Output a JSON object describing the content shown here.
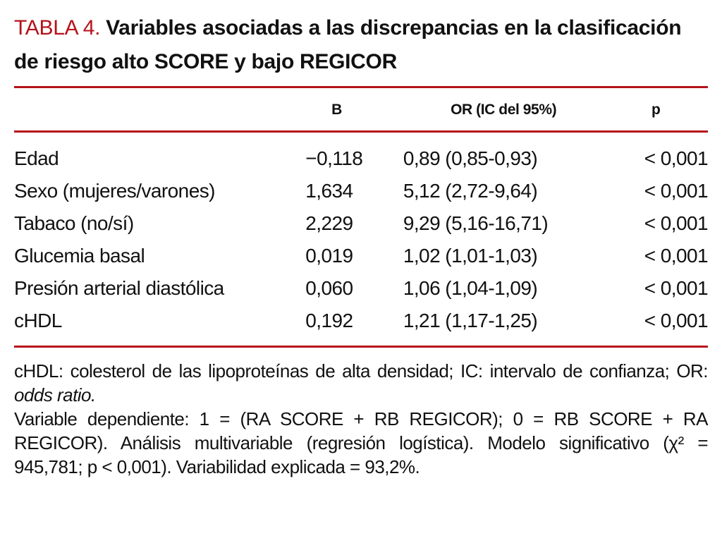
{
  "colors": {
    "accent": "#b5121b"
  },
  "title": {
    "label": "TABLA 4.",
    "text": "Variables asociadas a las discrepancias en la clasificación de riesgo alto SCORE y bajo REGICOR"
  },
  "table": {
    "headers": {
      "variable": "",
      "b": "B",
      "or": "OR (IC del 95%)",
      "p": "p"
    },
    "rows": [
      {
        "variable": "Edad",
        "b": "−0,118",
        "or": "0,89 (0,85-0,93)",
        "p": "< 0,001"
      },
      {
        "variable": "Sexo (mujeres/varones)",
        "b": "1,634",
        "or": "5,12 (2,72-9,64)",
        "p": "< 0,001"
      },
      {
        "variable": "Tabaco (no/sí)",
        "b": "2,229",
        "or": "9,29 (5,16-16,71)",
        "p": "< 0,001"
      },
      {
        "variable": "Glucemia basal",
        "b": "0,019",
        "or": "1,02 (1,01-1,03)",
        "p": "< 0,001"
      },
      {
        "variable": "Presión arterial diastólica",
        "b": "0,060",
        "or": "1,06 (1,04-1,09)",
        "p": "< 0,001"
      },
      {
        "variable": "cHDL",
        "b": "0,192",
        "or": "1,21 (1,17-1,25)",
        "p": "< 0,001"
      }
    ]
  },
  "footnotes": {
    "f1_text": "cHDL: colesterol de las lipoproteínas de alta densidad; IC: intervalo de confianza; OR: ",
    "f1_italic": "odds ratio.",
    "f2": "Variable dependiente: 1 = (RA SCORE + RB REGICOR); 0 = RB SCORE + RA REGICOR). Análisis multivariable (regresión logística). Modelo significativo (χ² = 945,781; p < 0,001). Variabilidad explicada = 93,2%."
  }
}
